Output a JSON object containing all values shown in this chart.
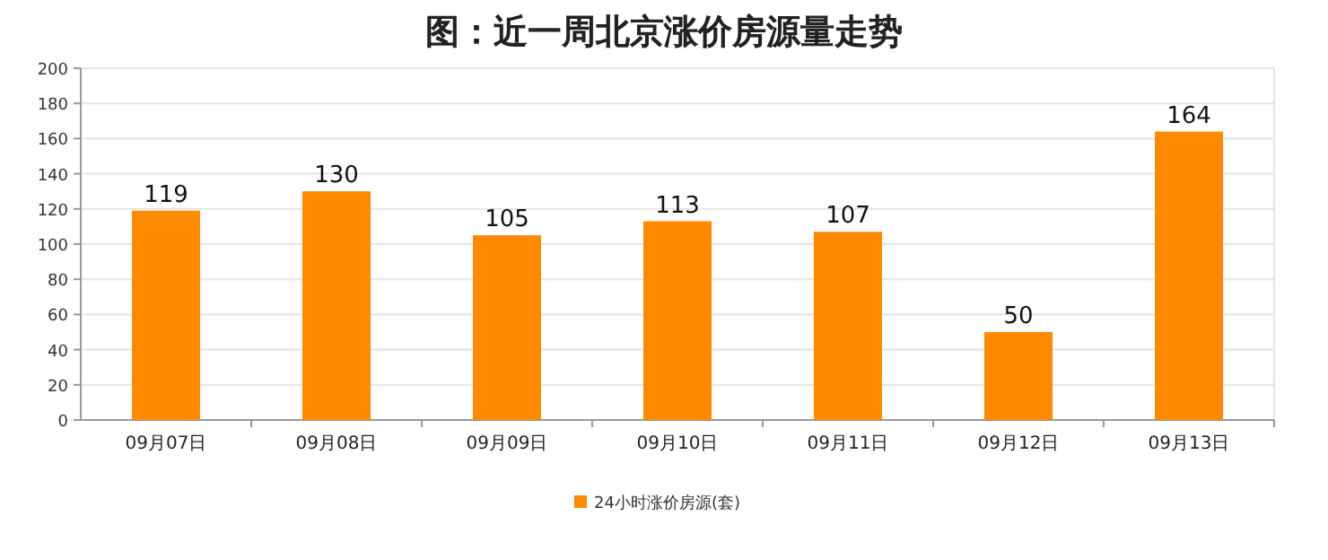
{
  "chart_data": {
    "type": "bar",
    "title": "图：近一周北京涨价房源量走势",
    "categories": [
      "09月07日",
      "09月08日",
      "09月09日",
      "09月10日",
      "09月11日",
      "09月12日",
      "09月13日"
    ],
    "series": [
      {
        "name": "24小时涨价房源(套)",
        "color": "#ff8a00",
        "values": [
          119,
          130,
          105,
          113,
          107,
          50,
          164
        ]
      }
    ],
    "ylim": [
      0,
      200
    ],
    "yticks": [
      0,
      20,
      40,
      60,
      80,
      100,
      120,
      140,
      160,
      180,
      200
    ],
    "grid": "y",
    "legend": "bottom",
    "data_labels": true
  }
}
